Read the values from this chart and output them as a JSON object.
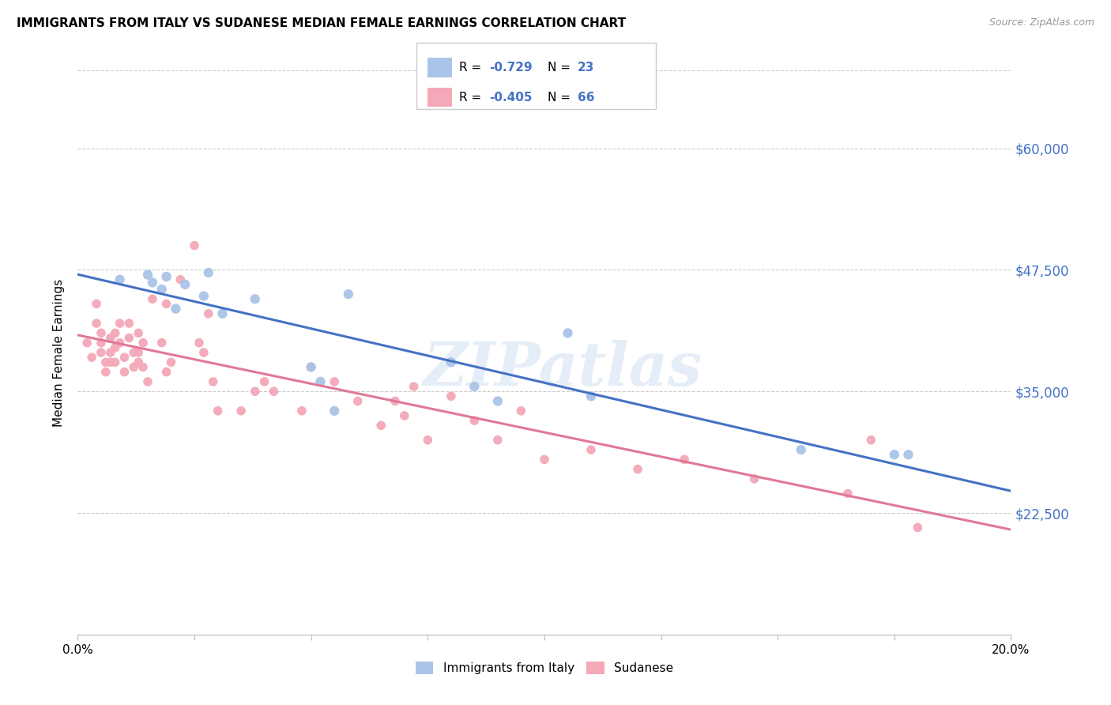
{
  "title": "IMMIGRANTS FROM ITALY VS SUDANESE MEDIAN FEMALE EARNINGS CORRELATION CHART",
  "source": "Source: ZipAtlas.com",
  "ylabel": "Median Female Earnings",
  "xmin": 0.0,
  "xmax": 0.2,
  "ymin": 10000,
  "ymax": 68000,
  "yticks": [
    22500,
    35000,
    47500,
    60000
  ],
  "ytick_labels": [
    "$22,500",
    "$35,000",
    "$47,500",
    "$60,000"
  ],
  "xticks": [
    0.0,
    0.025,
    0.05,
    0.075,
    0.1,
    0.125,
    0.15,
    0.175,
    0.2
  ],
  "legend_label1": "Immigrants from Italy",
  "legend_label2": "Sudanese",
  "R1": -0.729,
  "N1": 23,
  "R2": -0.405,
  "N2": 66,
  "color_italy": "#aac4e8",
  "color_sudanese": "#f4a8b8",
  "color_line_italy": "#4472c4",
  "color_line_sudanese": "#e07898",
  "color_axis_labels": "#4472c4",
  "watermark_text": "ZIPatlas",
  "italy_x": [
    0.009,
    0.015,
    0.016,
    0.018,
    0.019,
    0.021,
    0.023,
    0.027,
    0.028,
    0.031,
    0.038,
    0.05,
    0.052,
    0.055,
    0.058,
    0.08,
    0.085,
    0.09,
    0.105,
    0.11,
    0.155,
    0.175,
    0.178
  ],
  "italy_y": [
    46500,
    47000,
    46200,
    45500,
    46800,
    43500,
    46000,
    44800,
    47200,
    43000,
    44500,
    37500,
    36000,
    33000,
    45000,
    38000,
    35500,
    34000,
    41000,
    34500,
    29000,
    28500,
    28500
  ],
  "sudanese_x": [
    0.002,
    0.003,
    0.004,
    0.004,
    0.005,
    0.005,
    0.005,
    0.006,
    0.006,
    0.007,
    0.007,
    0.007,
    0.008,
    0.008,
    0.008,
    0.009,
    0.009,
    0.01,
    0.01,
    0.011,
    0.011,
    0.012,
    0.012,
    0.013,
    0.013,
    0.013,
    0.014,
    0.014,
    0.015,
    0.016,
    0.018,
    0.019,
    0.019,
    0.02,
    0.022,
    0.025,
    0.026,
    0.027,
    0.028,
    0.029,
    0.03,
    0.035,
    0.038,
    0.04,
    0.042,
    0.048,
    0.05,
    0.055,
    0.06,
    0.065,
    0.068,
    0.07,
    0.072,
    0.075,
    0.08,
    0.085,
    0.09,
    0.095,
    0.1,
    0.11,
    0.12,
    0.13,
    0.145,
    0.165,
    0.17,
    0.18
  ],
  "sudanese_y": [
    40000,
    38500,
    44000,
    42000,
    41000,
    40000,
    39000,
    38000,
    37000,
    40500,
    39000,
    38000,
    41000,
    39500,
    38000,
    42000,
    40000,
    38500,
    37000,
    42000,
    40500,
    39000,
    37500,
    41000,
    39000,
    38000,
    40000,
    37500,
    36000,
    44500,
    40000,
    44000,
    37000,
    38000,
    46500,
    50000,
    40000,
    39000,
    43000,
    36000,
    33000,
    33000,
    35000,
    36000,
    35000,
    33000,
    37500,
    36000,
    34000,
    31500,
    34000,
    32500,
    35500,
    30000,
    34500,
    32000,
    30000,
    33000,
    28000,
    29000,
    27000,
    28000,
    26000,
    24500,
    30000,
    21000
  ]
}
